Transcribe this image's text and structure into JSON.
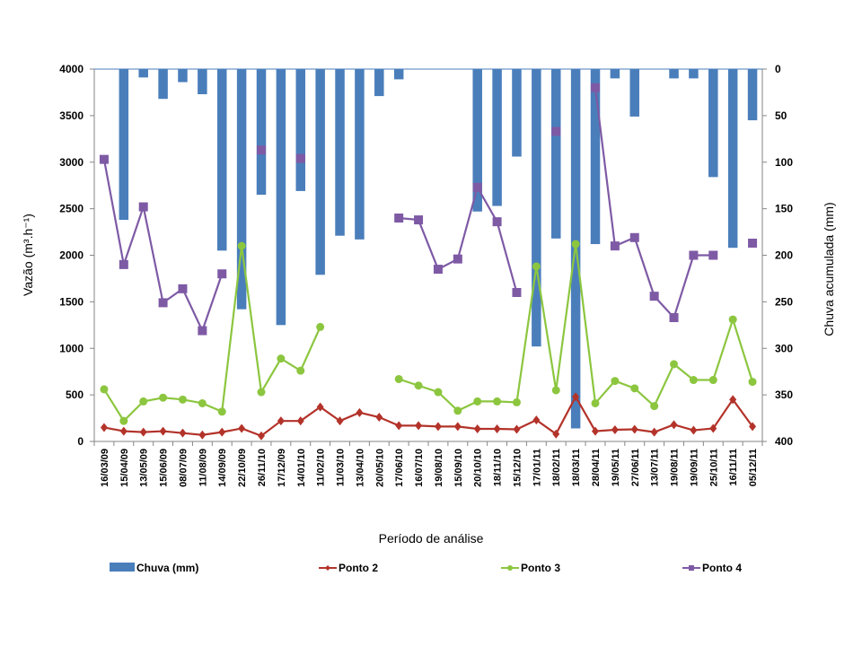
{
  "chart_data": {
    "type": "bar+line",
    "title": "",
    "xlabel": "Período de análise",
    "ylabel": "Vazão (m³.h⁻¹)",
    "ylabel_right": "Chuva acumulada (mm)",
    "ylim": [
      0,
      4000
    ],
    "yticks": [
      0,
      500,
      1000,
      1500,
      2000,
      2500,
      3000,
      3500,
      4000
    ],
    "ylim_right": [
      0,
      400
    ],
    "yticks_right": [
      0,
      50,
      100,
      150,
      200,
      250,
      300,
      350,
      400
    ],
    "right_axis_inverted": true,
    "grid": false,
    "legend_position": "bottom",
    "categories": [
      "16/03/09",
      "15/04/09",
      "13/05/09",
      "15/06/09",
      "08/07/09",
      "11/08/09",
      "14/09/09",
      "22/10/09",
      "26/11/10",
      "17/12/09",
      "14/01/10",
      "11/02/10",
      "11/03/10",
      "13/04/10",
      "20/05/10",
      "17/06/10",
      "16/07/10",
      "19/08/10",
      "15/09/10",
      "20/10/10",
      "18/11/10",
      "15/12/10",
      "17/01/11",
      "18/02/11",
      "18/03/11",
      "28/04/11",
      "19/05/11",
      "27/06/11",
      "13/07/11",
      "19/08/11",
      "19/09/11",
      "25/10/11",
      "16/11/11",
      "05/12/11"
    ],
    "series": [
      {
        "name": "Chuva (mm)",
        "type": "bar",
        "axis": "right",
        "color": "#4a7ebb",
        "values": [
          null,
          162,
          9,
          32,
          14,
          27,
          195,
          258,
          135,
          275,
          131,
          221,
          179,
          183,
          29,
          11,
          null,
          null,
          null,
          153,
          147,
          94,
          298,
          182,
          386,
          188,
          10,
          51,
          null,
          10,
          10,
          116,
          192,
          55
        ]
      },
      {
        "name": "Ponto 2",
        "type": "line",
        "axis": "left",
        "color": "#b3332a",
        "marker": "diamond",
        "values": [
          150,
          110,
          100,
          110,
          90,
          70,
          100,
          140,
          60,
          220,
          220,
          370,
          220,
          310,
          260,
          170,
          170,
          160,
          160,
          135,
          135,
          130,
          230,
          80,
          480,
          110,
          125,
          130,
          100,
          180,
          120,
          140,
          450,
          160
        ]
      },
      {
        "name": "Ponto 3",
        "type": "line",
        "axis": "left",
        "color": "#8cc63f",
        "marker": "circle",
        "values": [
          560,
          220,
          430,
          470,
          450,
          410,
          320,
          2100,
          530,
          890,
          760,
          1230,
          null,
          null,
          null,
          670,
          600,
          530,
          330,
          430,
          430,
          420,
          1880,
          550,
          2120,
          410,
          650,
          570,
          380,
          830,
          660,
          660,
          1310,
          640
        ]
      },
      {
        "name": "Ponto 4",
        "type": "line",
        "axis": "left",
        "color": "#7e5aa5",
        "marker": "square",
        "values": [
          3030,
          1900,
          2520,
          1490,
          1640,
          1190,
          1800,
          null,
          3130,
          null,
          3040,
          null,
          null,
          null,
          null,
          2400,
          2380,
          1850,
          1960,
          2730,
          2360,
          1600,
          null,
          3330,
          null,
          3800,
          2100,
          2190,
          1560,
          1330,
          2000,
          2000,
          null,
          2130
        ]
      }
    ]
  }
}
